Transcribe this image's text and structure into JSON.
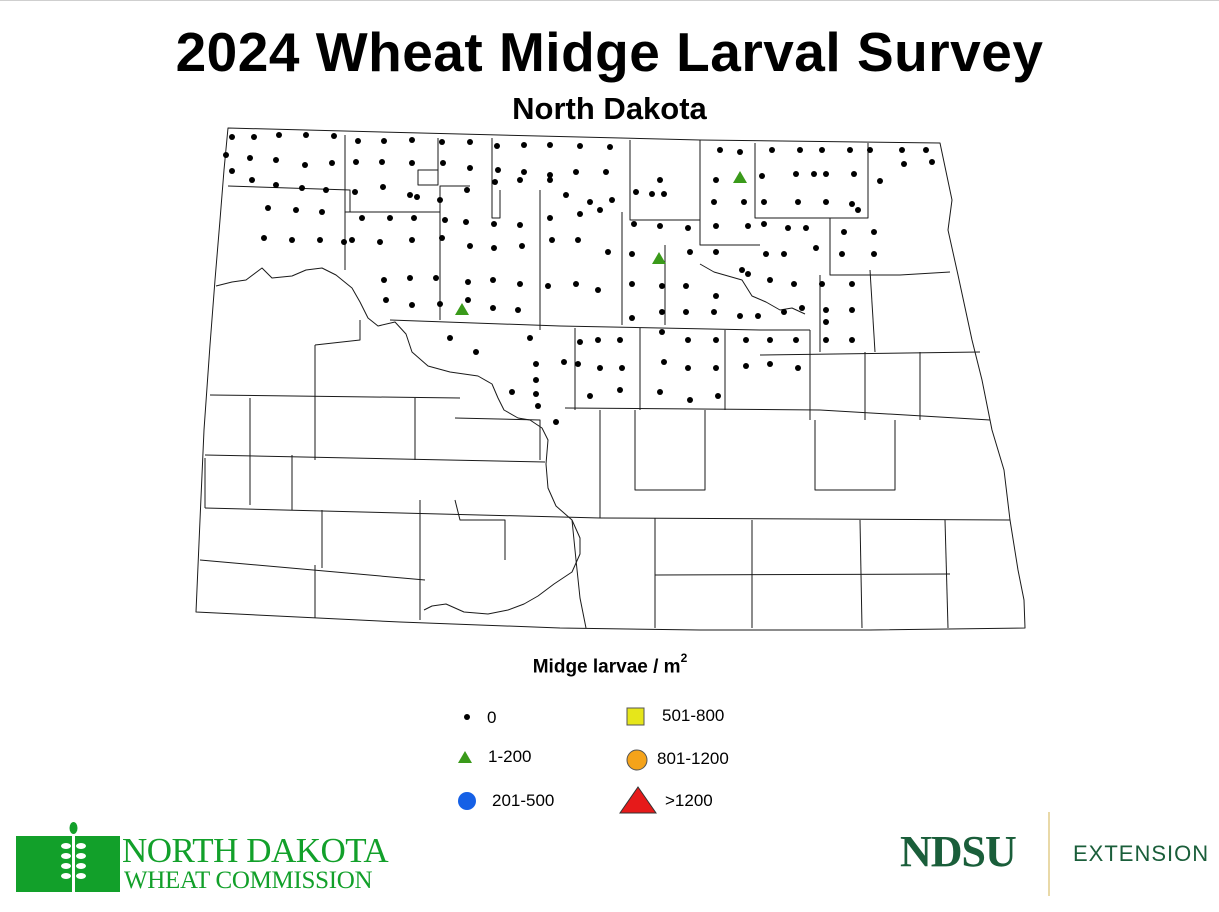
{
  "header": {
    "title": "2024 Wheat Midge Larval Survey",
    "subtitle": "North Dakota"
  },
  "map": {
    "region": "North Dakota county map",
    "survey_sites": {
      "zero_count": 176,
      "one_to_200_count": 3
    }
  },
  "legend": {
    "title": "Midge larvae / m",
    "title_superscript": "2",
    "items": [
      {
        "label": "0",
        "symbol": "black-dot",
        "color": "#000000"
      },
      {
        "label": "1-200",
        "symbol": "green-triangle",
        "color": "#3a9a1a"
      },
      {
        "label": "201-500",
        "symbol": "blue-circle",
        "color": "#1560e6"
      },
      {
        "label": "501-800",
        "symbol": "yellow-square",
        "color": "#e6e61a"
      },
      {
        "label": "801-1200",
        "symbol": "orange-circle",
        "color": "#f5a31a"
      },
      {
        "label": ">1200",
        "symbol": "red-triangle",
        "color": "#e61a1a"
      }
    ]
  },
  "logos": {
    "ndwc_line1": "NORTH DAKOTA",
    "ndwc_line2": "WHEAT COMMISSION",
    "ndwc_color": "#12a02a",
    "ndsu_wordmark": "NDSU",
    "ndsu_color": "#1a5e3a",
    "extension": "EXTENSION"
  }
}
